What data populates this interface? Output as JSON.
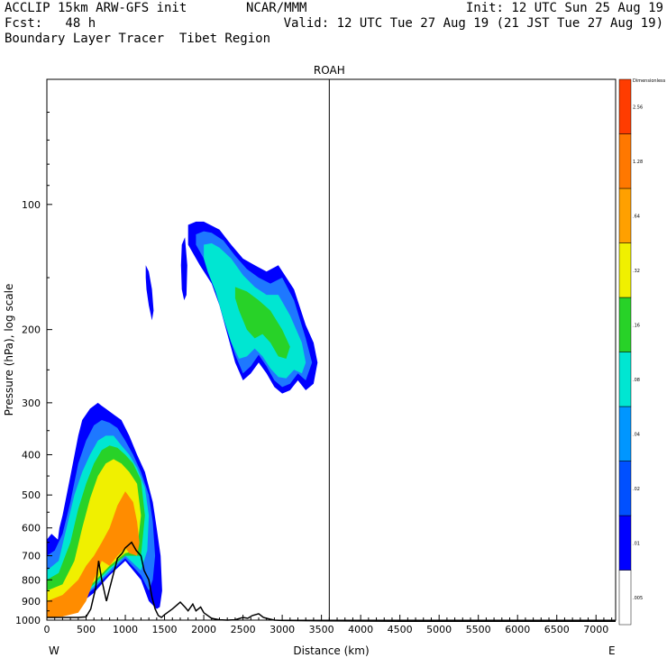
{
  "header": {
    "line1_left": "ACCLIP 15km ARW-GFS init",
    "line1_center": "NCAR/MMM",
    "line1_right": "Init: 12 UTC Sun 25 Aug 19",
    "line2_left": "Fcst:   48 h",
    "line2_right": "Valid: 12 UTC Tue 27 Aug 19 (21 JST Tue 27 Aug 19)",
    "line3_left": "Boundary Layer Tracer  Tibet Region"
  },
  "chart_data": {
    "type": "heatmap",
    "title": "ROAH",
    "xlabel": "Distance (km)",
    "ylabel": "Pressure (hPa), log scale",
    "x_range": [
      0,
      7250
    ],
    "y_range_hpa": [
      1000,
      50
    ],
    "y_scale": "log",
    "x_ticks": [
      0,
      500,
      1000,
      1500,
      2000,
      2500,
      3000,
      3500,
      4000,
      4500,
      5000,
      5500,
      6000,
      6500,
      7000
    ],
    "y_ticks": [
      100,
      200,
      300,
      400,
      500,
      600,
      700,
      800,
      900,
      1000
    ],
    "x_end_labels": {
      "left": "W",
      "right": "E"
    },
    "vertical_marker_km": 3600,
    "colorbar": {
      "header": "Dimensionless",
      "levels": [
        ".005",
        ".01",
        ".02",
        ".04",
        ".08",
        ".16",
        ".32",
        ".64",
        "1.28",
        "2.56"
      ],
      "colors": [
        "#ffffff",
        "#0000ff",
        "#0050ff",
        "#0096ff",
        "#00e6d2",
        "#28d228",
        "#f0f000",
        "#ffa000",
        "#ff7800",
        "#ff3c00"
      ]
    },
    "contour_colors": {
      "blue": "#0000ff",
      "mid_blue": "#1e78ff",
      "cyan": "#00e6d2",
      "green": "#28d228",
      "yellow": "#f0f000",
      "orange": "#ff8c00"
    },
    "terrain": {
      "x_km": [
        0,
        200,
        400,
        500,
        560,
        620,
        660,
        700,
        760,
        800,
        860,
        900,
        960,
        1000,
        1080,
        1140,
        1200,
        1240,
        1300,
        1340,
        1380,
        1420,
        1460,
        1500,
        1600,
        1700,
        1760,
        1800,
        1860,
        1900,
        1960,
        2000,
        2100,
        2200,
        2300,
        2400,
        2500,
        2560,
        2620,
        2700,
        2760,
        2800,
        2900,
        3000,
        3500,
        4000,
        4500,
        5000,
        5500,
        6000,
        6500,
        7000,
        7250
      ],
      "p_hpa": [
        985,
        985,
        985,
        982,
        940,
        840,
        720,
        800,
        900,
        840,
        760,
        710,
        690,
        670,
        650,
        680,
        700,
        760,
        800,
        880,
        940,
        975,
        985,
        970,
        940,
        905,
        930,
        950,
        915,
        950,
        930,
        960,
        990,
        998,
        1000,
        998,
        985,
        990,
        975,
        965,
        985,
        990,
        1000,
        1002,
        1004,
        1005,
        1006,
        1006,
        1006,
        1006,
        1006,
        1006,
        1006
      ]
    },
    "blobs": [
      {
        "name": "west-boundary-layer",
        "levels": [
          {
            "color": "blue",
            "x_km": [
              0,
              60,
              140,
              160,
              200,
              300,
              400,
              450,
              550,
              650,
              700,
              750,
              850,
              950,
              1050,
              1150,
              1250,
              1350,
              1400,
              1450,
              1470,
              1440,
              1400,
              1300,
              1200,
              1000,
              800,
              600,
              400,
              200,
              0
            ],
            "p_hpa": [
              640,
              620,
              640,
              600,
              560,
              450,
              360,
              330,
              310,
              300,
              305,
              310,
              320,
              330,
              360,
              400,
              440,
              520,
              600,
              700,
              850,
              930,
              940,
              900,
              800,
              720,
              780,
              860,
              920,
              960,
              960
            ]
          },
          {
            "color": "mid_blue",
            "x_km": [
              0,
              100,
              200,
              300,
              400,
              500,
              600,
              700,
              800,
              900,
              1000,
              1100,
              1200,
              1300,
              1350,
              1380,
              1350,
              1300,
              1200,
              1000,
              800,
              600,
              400,
              200,
              0
            ],
            "p_hpa": [
              700,
              680,
              620,
              520,
              420,
              370,
              340,
              330,
              335,
              345,
              370,
              400,
              440,
              500,
              580,
              700,
              800,
              850,
              780,
              710,
              770,
              840,
              900,
              950,
              950
            ]
          },
          {
            "color": "cyan",
            "x_km": [
              0,
              150,
              250,
              350,
              450,
              550,
              650,
              750,
              850,
              950,
              1050,
              1150,
              1250,
              1300,
              1280,
              1200,
              1000,
              800,
              600,
              400,
              200,
              0
            ],
            "p_hpa": [
              760,
              720,
              600,
              500,
              440,
              400,
              370,
              360,
              360,
              380,
              400,
              430,
              480,
              560,
              680,
              760,
              700,
              760,
              830,
              890,
              940,
              940
            ]
          },
          {
            "color": "green",
            "x_km": [
              0,
              150,
              300,
              400,
              500,
              600,
              700,
              800,
              900,
              1000,
              1100,
              1200,
              1250,
              1200,
              1000,
              800,
              600,
              400,
              200,
              0
            ],
            "p_hpa": [
              800,
              770,
              650,
              540,
              470,
              420,
              390,
              380,
              385,
              400,
              420,
              460,
              560,
              700,
              700,
              750,
              820,
              880,
              930,
              930
            ]
          },
          {
            "color": "yellow",
            "x_km": [
              0,
              200,
              350,
              450,
              550,
              650,
              750,
              850,
              950,
              1050,
              1150,
              1200,
              1150,
              1000,
              800,
              600,
              400,
              200,
              0
            ],
            "p_hpa": [
              850,
              820,
              720,
              600,
              510,
              450,
              420,
              410,
              420,
              440,
              470,
              560,
              680,
              690,
              740,
              810,
              870,
              920,
              920
            ]
          },
          {
            "color": "orange",
            "x_km": [
              0,
              200,
              400,
              500,
              600,
              700,
              800,
              900,
              1000,
              1100,
              1150,
              1180,
              1150,
              1050,
              1000,
              900,
              800,
              700,
              600,
              500,
              400,
              200,
              0
            ],
            "p_hpa": [
              900,
              870,
              800,
              740,
              700,
              650,
              600,
              530,
              490,
              520,
              580,
              650,
              700,
              690,
              670,
              700,
              740,
              720,
              800,
              900,
              960,
              980,
              985
            ]
          }
        ]
      },
      {
        "name": "upper-tropospheric-plume",
        "levels": [
          {
            "color": "blue",
            "x_km": [
              1800,
              1900,
              2000,
              2200,
              2350,
              2500,
              2650,
              2800,
              2950,
              3150,
              3300,
              3400,
              3450,
              3400,
              3300,
              3200,
              3100,
              3000,
              2900,
              2800,
              2700,
              2600,
              2500,
              2400,
              2300,
              2200,
              2100,
              1950,
              1800
            ],
            "p_hpa": [
              112,
              110,
              110,
              115,
              125,
              135,
              140,
              145,
              140,
              160,
              195,
              215,
              240,
              270,
              280,
              265,
              280,
              285,
              275,
              255,
              240,
              255,
              265,
              240,
              205,
              175,
              155,
              140,
              125
            ]
          },
          {
            "color": "mid_blue",
            "x_km": [
              1900,
              2000,
              2100,
              2250,
              2400,
              2550,
              2700,
              2850,
              3000,
              3150,
              3300,
              3380,
              3300,
              3200,
              3100,
              3000,
              2900,
              2800,
              2700,
              2600,
              2500,
              2400,
              2300,
              2200,
              2100,
              2000,
              1900
            ],
            "p_hpa": [
              118,
              116,
              117,
              122,
              133,
              143,
              150,
              155,
              150,
              170,
              210,
              240,
              265,
              255,
              270,
              275,
              265,
              245,
              230,
              245,
              255,
              230,
              200,
              170,
              150,
              135,
              125
            ]
          },
          {
            "color": "cyan",
            "x_km": [
              2000,
              2100,
              2200,
              2350,
              2500,
              2650,
              2800,
              2950,
              3100,
              3250,
              3300,
              3250,
              3150,
              3050,
              2950,
              2850,
              2750,
              2650,
              2550,
              2450,
              2350,
              2250,
              2150,
              2050,
              2000
            ],
            "p_hpa": [
              125,
              124,
              127,
              135,
              148,
              158,
              165,
              165,
              185,
              215,
              240,
              255,
              250,
              262,
              260,
              248,
              232,
              222,
              232,
              235,
              215,
              188,
              162,
              145,
              135
            ]
          },
          {
            "color": "green",
            "x_km": [
              2400,
              2550,
              2700,
              2850,
              3000,
              3100,
              3050,
              2950,
              2850,
              2750,
              2650,
              2550,
              2450,
              2400
            ],
            "p_hpa": [
              158,
              162,
              170,
              180,
              200,
              220,
              235,
              232,
              215,
              205,
              210,
              200,
              180,
              168
            ]
          },
          {
            "color": "blue",
            "x_km": [
              1260,
              1300,
              1340,
              1360,
              1340,
              1300,
              1270,
              1260
            ],
            "p_hpa": [
              140,
              145,
              160,
              180,
              190,
              175,
              160,
              150
            ]
          },
          {
            "color": "blue",
            "x_km": [
              1720,
              1760,
              1790,
              1780,
              1750,
              1720,
              1710,
              1720
            ],
            "p_hpa": [
              125,
              120,
              140,
              165,
              170,
              160,
              140,
              125
            ]
          }
        ]
      }
    ]
  }
}
